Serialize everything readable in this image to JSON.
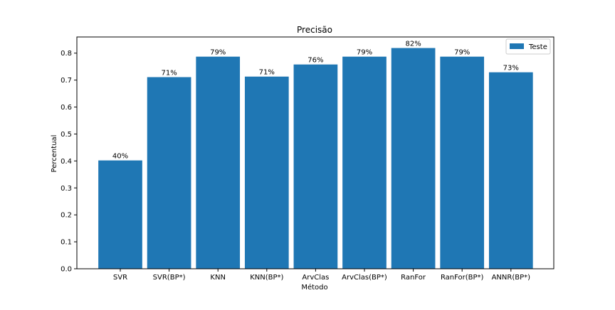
{
  "chart_data": {
    "type": "bar",
    "title": "Precisão",
    "xlabel": "Método",
    "ylabel": "Percentual",
    "categories": [
      "SVR",
      "SVR(BP*)",
      "KNN",
      "KNN(BP*)",
      "ArvClas",
      "ArvClas(BP*)",
      "RanFor",
      "RanFor(BP*)",
      "ANNR(BP*)"
    ],
    "series": [
      {
        "name": "Teste",
        "values": [
          0.402,
          0.711,
          0.787,
          0.713,
          0.758,
          0.787,
          0.819,
          0.787,
          0.729
        ],
        "labels": [
          "40%",
          "71%",
          "79%",
          "71%",
          "76%",
          "79%",
          "82%",
          "79%",
          "73%"
        ],
        "color": "#1f77b4"
      }
    ],
    "ylim": [
      0,
      0.86
    ],
    "yticks": [
      "0.0",
      "0.1",
      "0.2",
      "0.3",
      "0.4",
      "0.5",
      "0.6",
      "0.7",
      "0.8"
    ],
    "grid": false,
    "legend_position": "top-right"
  }
}
